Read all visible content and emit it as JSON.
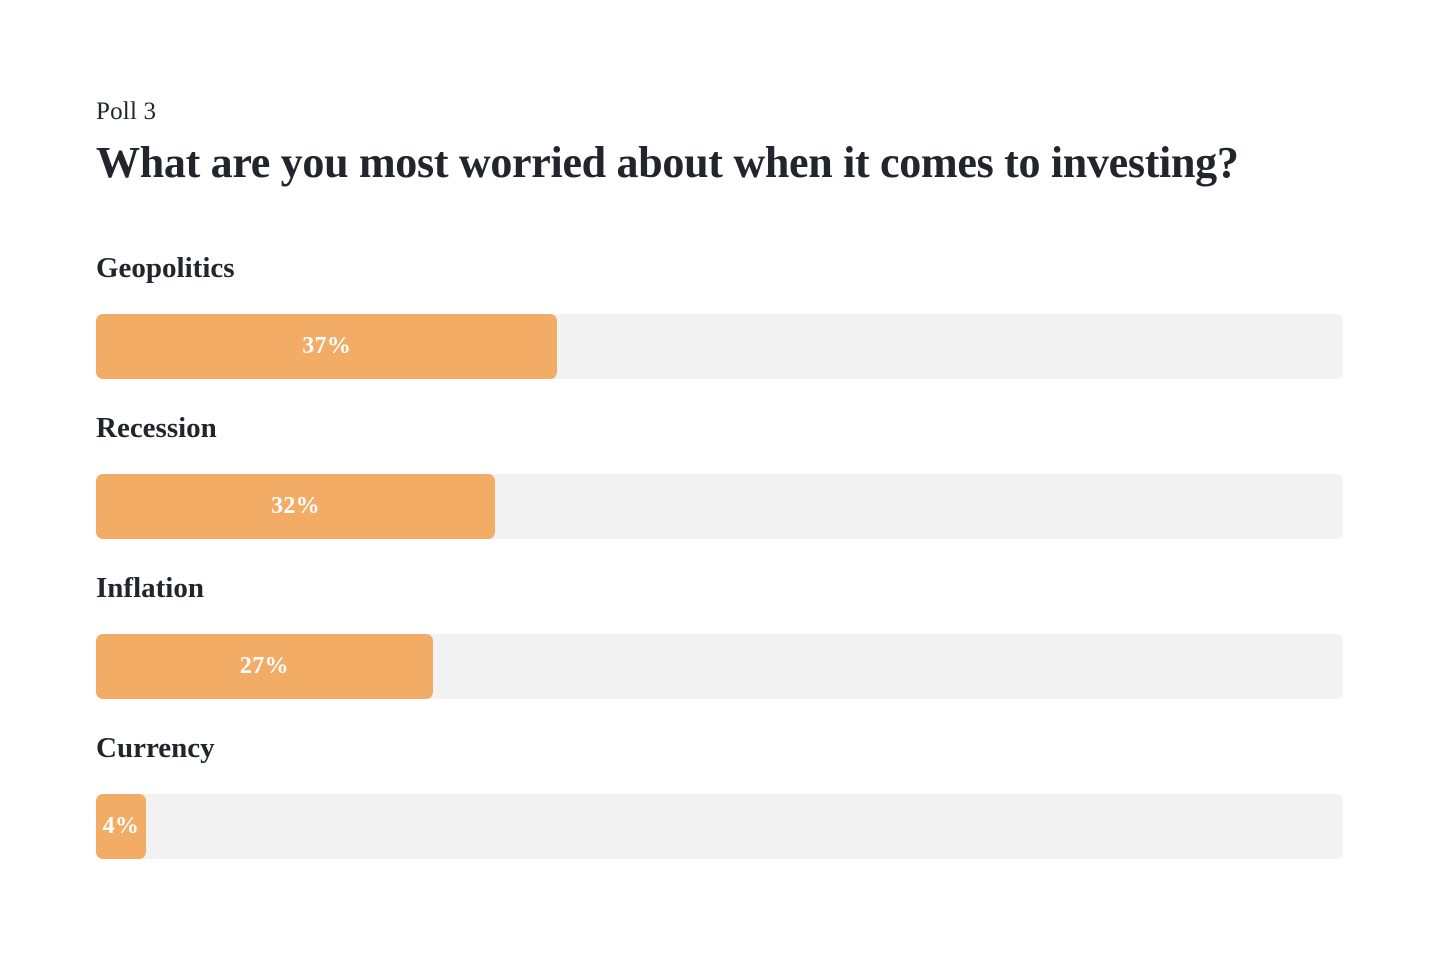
{
  "poll": {
    "kicker": "Poll 3",
    "title": "What are you most worried about when it comes to investing?"
  },
  "bars": [
    {
      "label": "Geopolitics",
      "value": 37,
      "value_label": "37%"
    },
    {
      "label": "Recession",
      "value": 32,
      "value_label": "32%"
    },
    {
      "label": "Inflation",
      "value": 27,
      "value_label": "27%"
    },
    {
      "label": "Currency",
      "value": 4,
      "value_label": "4%"
    }
  ],
  "colors": {
    "bar_fill": "#f2ac66",
    "bar_track": "#f2f2f2",
    "text": "#22252b",
    "value_text": "#ffffff"
  },
  "chart_data": {
    "type": "bar",
    "orientation": "horizontal",
    "title": "What are you most worried about when it comes to investing?",
    "subtitle": "Poll 3",
    "categories": [
      "Geopolitics",
      "Recession",
      "Inflation",
      "Currency"
    ],
    "values": [
      37,
      32,
      27,
      4
    ],
    "value_unit": "%",
    "xlabel": "",
    "ylabel": "",
    "xlim": [
      0,
      100
    ],
    "grid": false,
    "legend": false,
    "data_labels": "inside-center, white"
  }
}
